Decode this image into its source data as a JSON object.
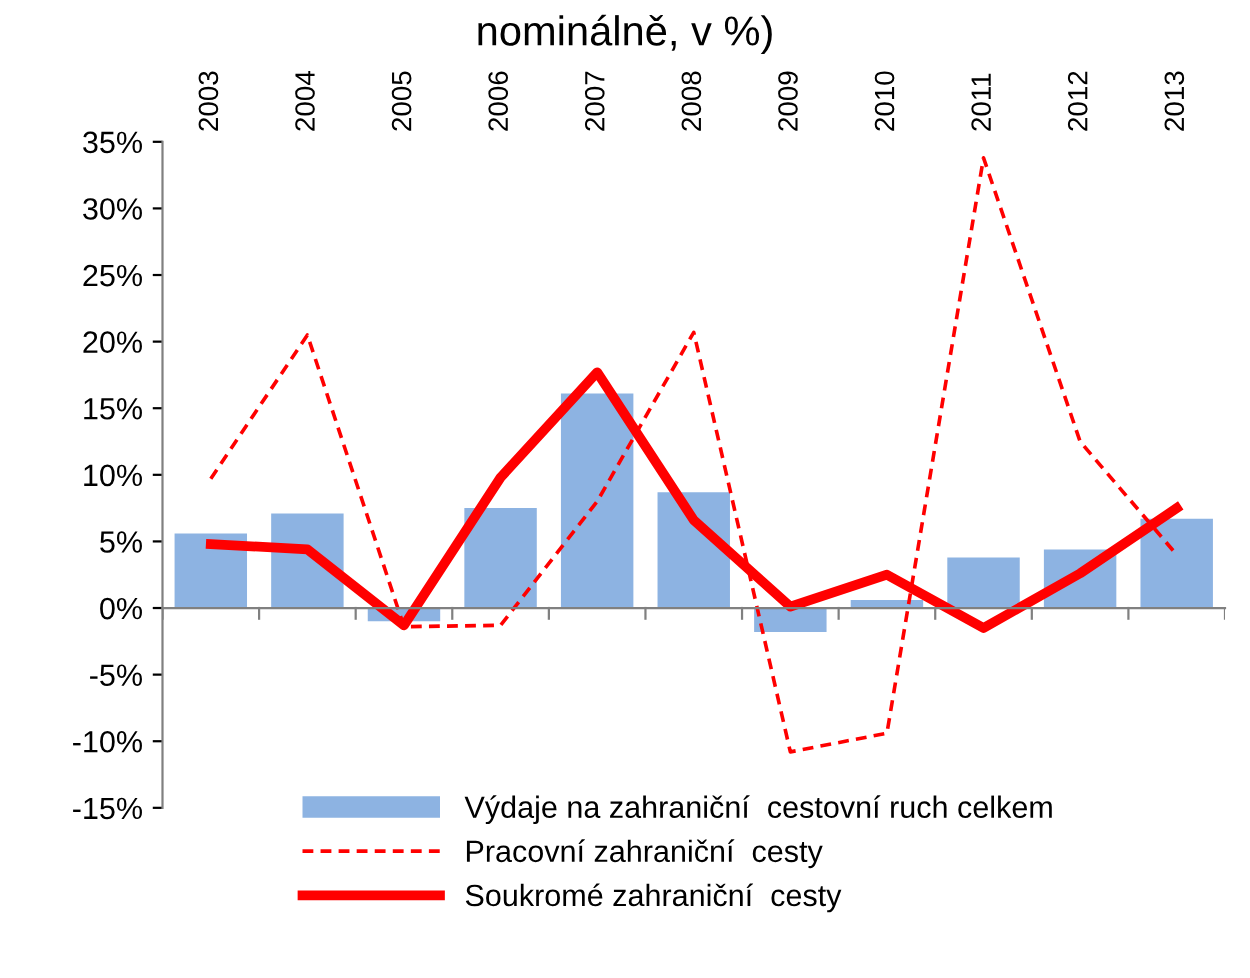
{
  "chart_data": {
    "type": "bar",
    "title": "nominálně, v %)",
    "categories": [
      "2003",
      "2004",
      "2005",
      "2006",
      "2007",
      "2008",
      "2009",
      "2010",
      "2011",
      "2012",
      "2013"
    ],
    "series": [
      {
        "name": "Výdaje na zahraniční  cestovní ruch celkem",
        "color": "#8db3e2",
        "values": [
          5.6,
          7.1,
          -1.0,
          7.5,
          16.1,
          8.7,
          -1.8,
          0.6,
          3.8,
          4.4,
          6.7
        ]
      },
      {
        "name": "Pracovní zahraniční  cesty",
        "type": "line",
        "line_style": "dashed",
        "color": "#ff0000",
        "values": [
          9.7,
          20.5,
          -1.4,
          -1.3,
          8.0,
          20.7,
          -10.8,
          -9.4,
          33.8,
          12.5,
          4.0
        ]
      },
      {
        "name": "Soukromé zahraniční  cesty",
        "type": "line",
        "line_style": "solid",
        "color": "#ff0000",
        "values": [
          4.8,
          4.4,
          -1.3,
          9.8,
          17.7,
          6.6,
          0.1,
          2.5,
          -1.5,
          2.6,
          7.5
        ]
      }
    ],
    "ylim": [
      -15,
      35
    ],
    "yticks": [
      {
        "value": -15,
        "label": "-15%"
      },
      {
        "value": -10,
        "label": "-10%"
      },
      {
        "value": -5,
        "label": "-5%"
      },
      {
        "value": 0,
        "label": "0%"
      },
      {
        "value": 5,
        "label": "5%"
      },
      {
        "value": 10,
        "label": "10%"
      },
      {
        "value": 15,
        "label": "15%"
      },
      {
        "value": 20,
        "label": "20%"
      },
      {
        "value": 25,
        "label": "25%"
      },
      {
        "value": 30,
        "label": "30%"
      },
      {
        "value": 35,
        "label": "35%"
      }
    ],
    "legend": "bottom"
  }
}
